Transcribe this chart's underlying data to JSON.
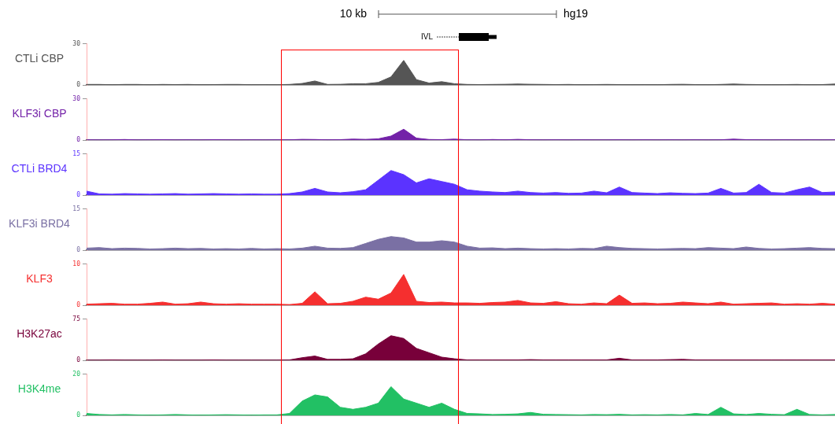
{
  "chart_data": [
    {
      "type": "area",
      "title": "CTLi CBP",
      "annotations": [
        "10 kb",
        "hg19",
        "IVL"
      ],
      "categories": [
        null,
        null,
        null,
        null,
        null,
        null,
        null,
        null,
        null,
        null,
        null,
        null,
        null,
        null,
        null,
        null,
        null,
        null,
        null,
        null,
        null,
        null,
        null,
        null,
        null,
        null,
        null,
        null,
        null,
        null,
        null,
        null,
        null,
        null,
        null,
        null,
        null,
        null,
        null,
        null,
        null,
        null,
        null,
        null,
        null,
        null,
        null,
        null,
        null,
        null,
        null,
        null,
        null,
        null,
        null,
        null,
        null,
        null,
        null,
        null
      ],
      "values": [
        0.5,
        0.5,
        0.3,
        0.5,
        0.5,
        0.3,
        0.5,
        0.4,
        0.5,
        0.3,
        0.4,
        0.5,
        0.5,
        0.3,
        0.4,
        0.3,
        0.5,
        1.2,
        3,
        0.5,
        0.6,
        1,
        1,
        2,
        6,
        18,
        4,
        1.5,
        2.5,
        1,
        0.5,
        0.4,
        0.5,
        0.6,
        0.8,
        0.6,
        0.5,
        0.4,
        0.5,
        0.3,
        0.4,
        0.5,
        0.4,
        0.3,
        0.4,
        0.3,
        0.5,
        0.6,
        0.4,
        0.3,
        0.5,
        0.8,
        0.5,
        0.4,
        0.3,
        0.4,
        0.5,
        0.3,
        0.4,
        0.8
      ],
      "color": "#555555",
      "ylim": [
        0,
        30
      ],
      "yticks": [
        0,
        30
      ],
      "grid": false,
      "tick_labels": "y"
    },
    {
      "type": "area",
      "title": "KLF3i CBP",
      "categories": [
        null,
        null,
        null,
        null,
        null,
        null,
        null,
        null,
        null,
        null,
        null,
        null,
        null,
        null,
        null,
        null,
        null,
        null,
        null,
        null,
        null,
        null,
        null,
        null,
        null,
        null,
        null,
        null,
        null,
        null,
        null,
        null,
        null,
        null,
        null,
        null,
        null,
        null,
        null,
        null,
        null,
        null,
        null,
        null,
        null,
        null,
        null,
        null,
        null,
        null,
        null,
        null,
        null,
        null,
        null,
        null,
        null,
        null,
        null,
        null
      ],
      "values": [
        0.3,
        0.2,
        0.3,
        0.5,
        0.2,
        0.3,
        0.4,
        0.2,
        0.3,
        0.2,
        0.4,
        0.3,
        0.2,
        0.3,
        0.2,
        0.3,
        0.3,
        0.6,
        0.5,
        0.3,
        0.4,
        0.8,
        0.6,
        1,
        3,
        8,
        1.5,
        0.5,
        0.4,
        0.8,
        0.3,
        0.2,
        0.5,
        0.3,
        0.6,
        0.3,
        0.2,
        0.3,
        0.2,
        0.3,
        0.2,
        0.2,
        0.3,
        0.2,
        0.3,
        0.2,
        0.3,
        0.2,
        0.3,
        0.2,
        0.3,
        0.8,
        0.4,
        0.3,
        0.2,
        0.3,
        0.2,
        0.3,
        0.2,
        0.3
      ],
      "color": "#7322a8",
      "ylim": [
        0,
        30
      ],
      "yticks": [
        0,
        30
      ],
      "grid": false,
      "tick_labels": "y"
    },
    {
      "type": "area",
      "title": "CTLi BRD4",
      "categories": [
        null,
        null,
        null,
        null,
        null,
        null,
        null,
        null,
        null,
        null,
        null,
        null,
        null,
        null,
        null,
        null,
        null,
        null,
        null,
        null,
        null,
        null,
        null,
        null,
        null,
        null,
        null,
        null,
        null,
        null,
        null,
        null,
        null,
        null,
        null,
        null,
        null,
        null,
        null,
        null,
        null,
        null,
        null,
        null,
        null,
        null,
        null,
        null,
        null,
        null,
        null,
        null,
        null,
        null,
        null,
        null,
        null,
        null,
        null,
        null
      ],
      "values": [
        1.5,
        0.5,
        0.4,
        0.6,
        0.5,
        0.4,
        0.5,
        0.6,
        0.4,
        0.5,
        0.6,
        0.5,
        0.4,
        0.5,
        0.4,
        0.4,
        0.6,
        1.2,
        2.5,
        1.2,
        0.9,
        1.3,
        2,
        5.5,
        9,
        7.5,
        4.5,
        6,
        5,
        4,
        2,
        1.5,
        1.2,
        1,
        1.5,
        1,
        0.8,
        1,
        0.7,
        0.8,
        1.5,
        0.9,
        3,
        1,
        0.8,
        0.6,
        0.9,
        0.7,
        0.6,
        0.8,
        2.5,
        0.8,
        1,
        4,
        1,
        0.8,
        2,
        3,
        1,
        1.2
      ],
      "color": "#5b33ff",
      "ylim": [
        0,
        15
      ],
      "yticks": [
        0,
        15
      ],
      "grid": false,
      "tick_labels": "y"
    },
    {
      "type": "area",
      "title": "KLF3i BRD4",
      "categories": [
        null,
        null,
        null,
        null,
        null,
        null,
        null,
        null,
        null,
        null,
        null,
        null,
        null,
        null,
        null,
        null,
        null,
        null,
        null,
        null,
        null,
        null,
        null,
        null,
        null,
        null,
        null,
        null,
        null,
        null,
        null,
        null,
        null,
        null,
        null,
        null,
        null,
        null,
        null,
        null,
        null,
        null,
        null,
        null,
        null,
        null,
        null,
        null,
        null,
        null,
        null,
        null,
        null,
        null,
        null,
        null,
        null,
        null,
        null,
        null
      ],
      "values": [
        0.8,
        1,
        0.6,
        0.8,
        0.7,
        0.5,
        0.6,
        0.8,
        0.6,
        0.7,
        0.5,
        0.6,
        0.5,
        0.7,
        0.5,
        0.6,
        0.5,
        0.8,
        1.5,
        0.8,
        0.7,
        1,
        2.5,
        4,
        5,
        4.5,
        3,
        3,
        3.5,
        3,
        1.5,
        0.8,
        0.9,
        0.6,
        0.8,
        0.6,
        0.5,
        0.6,
        0.5,
        0.7,
        0.6,
        1.5,
        1,
        0.7,
        0.6,
        0.5,
        0.6,
        0.7,
        0.6,
        1,
        0.8,
        0.6,
        1.2,
        0.7,
        0.5,
        0.6,
        0.8,
        1,
        0.7,
        0.6
      ],
      "color": "#7a70a4",
      "ylim": [
        0,
        15
      ],
      "yticks": [
        0,
        15
      ],
      "grid": false,
      "tick_labels": "y"
    },
    {
      "type": "area",
      "title": "KLF3",
      "categories": [
        null,
        null,
        null,
        null,
        null,
        null,
        null,
        null,
        null,
        null,
        null,
        null,
        null,
        null,
        null,
        null,
        null,
        null,
        null,
        null,
        null,
        null,
        null,
        null,
        null,
        null,
        null,
        null,
        null,
        null,
        null,
        null,
        null,
        null,
        null,
        null,
        null,
        null,
        null,
        null,
        null,
        null,
        null,
        null,
        null,
        null,
        null,
        null,
        null,
        null,
        null,
        null,
        null,
        null,
        null,
        null,
        null,
        null,
        null,
        null
      ],
      "values": [
        0.3,
        0.4,
        0.5,
        0.3,
        0.3,
        0.5,
        0.8,
        0.3,
        0.4,
        0.8,
        0.4,
        0.3,
        0.4,
        0.3,
        0.3,
        0.3,
        0.2,
        0.5,
        3.3,
        0.4,
        0.5,
        1,
        2,
        1.5,
        3,
        7.5,
        1,
        0.7,
        0.8,
        0.6,
        0.6,
        0.5,
        0.7,
        0.8,
        1.2,
        0.6,
        0.5,
        0.9,
        0.4,
        0.3,
        0.6,
        0.4,
        2.5,
        0.5,
        0.6,
        0.4,
        0.5,
        0.8,
        0.6,
        0.4,
        0.8,
        0.3,
        0.4,
        0.5,
        0.6,
        0.3,
        0.4,
        0.3,
        0.5,
        0.3
      ],
      "color": "#f52f2f",
      "ylim": [
        0,
        10
      ],
      "yticks": [
        0,
        10
      ],
      "grid": false,
      "tick_labels": "y"
    },
    {
      "type": "area",
      "title": "H3K27ac",
      "categories": [
        null,
        null,
        null,
        null,
        null,
        null,
        null,
        null,
        null,
        null,
        null,
        null,
        null,
        null,
        null,
        null,
        null,
        null,
        null,
        null,
        null,
        null,
        null,
        null,
        null,
        null,
        null,
        null,
        null,
        null,
        null,
        null,
        null,
        null,
        null,
        null,
        null,
        null,
        null,
        null,
        null,
        null,
        null,
        null,
        null,
        null,
        null,
        null,
        null,
        null,
        null,
        null,
        null,
        null,
        null,
        null,
        null,
        null,
        null,
        null
      ],
      "values": [
        0.5,
        0.5,
        1,
        0.5,
        0.5,
        0.5,
        1,
        0.5,
        0.5,
        0.5,
        1,
        0.5,
        0.5,
        0.5,
        0.5,
        0.5,
        1,
        5,
        8,
        2,
        2,
        3,
        12,
        30,
        45,
        40,
        22,
        14,
        6,
        3,
        1,
        1,
        1,
        1,
        1,
        1.5,
        1,
        1,
        1,
        1,
        1,
        1,
        4,
        1,
        1,
        1,
        1.5,
        2,
        1,
        1,
        1,
        1,
        1,
        1,
        1,
        1,
        1,
        1,
        1,
        1
      ],
      "color": "#78003a",
      "ylim": [
        0,
        75
      ],
      "yticks": [
        0,
        75
      ],
      "grid": false,
      "tick_labels": "y"
    },
    {
      "type": "area",
      "title": "H3K4me",
      "categories": [
        null,
        null,
        null,
        null,
        null,
        null,
        null,
        null,
        null,
        null,
        null,
        null,
        null,
        null,
        null,
        null,
        null,
        null,
        null,
        null,
        null,
        null,
        null,
        null,
        null,
        null,
        null,
        null,
        null,
        null,
        null,
        null,
        null,
        null,
        null,
        null,
        null,
        null,
        null,
        null,
        null,
        null,
        null,
        null,
        null,
        null,
        null,
        null,
        null,
        null,
        null,
        null,
        null,
        null,
        null,
        null,
        null,
        null,
        null,
        null
      ],
      "values": [
        1,
        0.5,
        0.3,
        0.5,
        0.3,
        0.2,
        0.3,
        0.5,
        0.3,
        0.2,
        0.3,
        0.4,
        0.3,
        0.2,
        0.3,
        0.3,
        1,
        7,
        10,
        9,
        4,
        3,
        4,
        6,
        14,
        8,
        6,
        4,
        6,
        3,
        1,
        0.8,
        0.5,
        0.6,
        0.8,
        1.5,
        0.6,
        0.5,
        0.4,
        0.3,
        0.5,
        0.4,
        0.6,
        0.3,
        0.4,
        0.3,
        0.5,
        0.3,
        1,
        0.5,
        4,
        0.8,
        0.5,
        1,
        0.6,
        0.4,
        3,
        0.5,
        0.3,
        0.5
      ],
      "color": "#22c064",
      "ylim": [
        0,
        20
      ],
      "yticks": [
        0,
        20
      ],
      "grid": false,
      "tick_labels": "y"
    }
  ]
}
